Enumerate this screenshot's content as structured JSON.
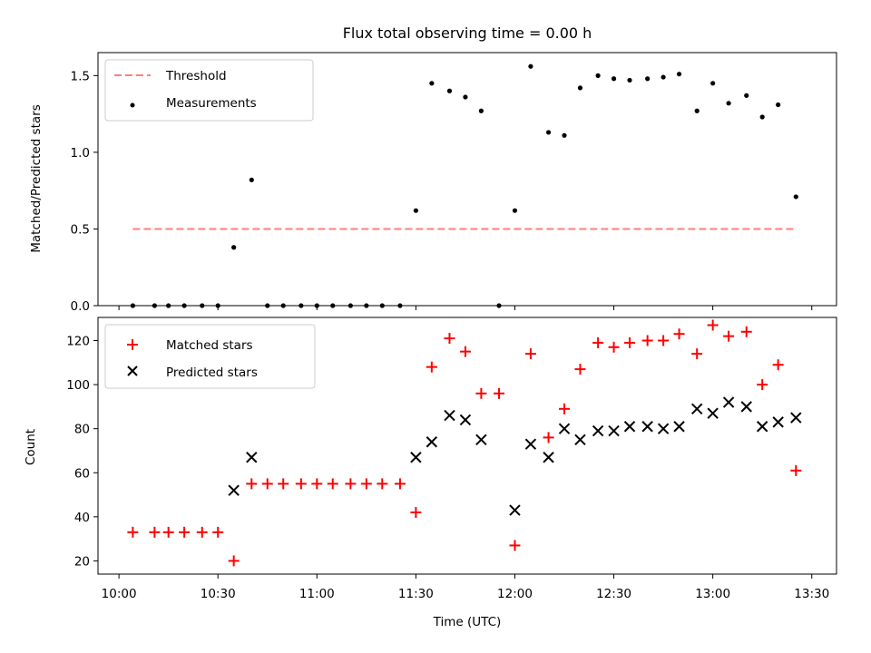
{
  "chart_data": {
    "title": "Flux total observing time = 0.00 h",
    "x_tick_labels": [
      "10:00",
      "10:30",
      "11:00",
      "11:30",
      "12:00",
      "12:30",
      "13:00",
      "13:30"
    ],
    "x_tick_values": [
      10.0,
      10.5,
      11.0,
      11.5,
      12.0,
      12.5,
      13.0,
      13.5
    ],
    "xlabel": "Time (UTC)",
    "xlim": [
      9.894,
      13.625
    ],
    "panels": [
      {
        "type": "scatter",
        "ylabel": "Matched/Predicted stars",
        "ylim": [
          0,
          1.65
        ],
        "y_ticks": [
          0.0,
          0.5,
          1.0,
          1.5
        ],
        "y_tick_labels": [
          "0.0",
          "0.5",
          "1.0",
          "1.5"
        ],
        "legend_position": "top-left",
        "threshold": {
          "name": "Threshold",
          "color": "#ff7f7f",
          "value": 0.5,
          "x_range": [
            10.07,
            13.42
          ]
        },
        "series": [
          {
            "name": "Measurements",
            "color": "#000000",
            "marker": "dot",
            "x": [
              10.07,
              10.18,
              10.25,
              10.33,
              10.42,
              10.5,
              10.58,
              10.67,
              10.75,
              10.83,
              10.92,
              11.0,
              11.08,
              11.17,
              11.25,
              11.33,
              11.42,
              11.5,
              11.58,
              11.67,
              11.75,
              11.83,
              11.92,
              12.0,
              12.08,
              12.17,
              12.25,
              12.33,
              12.42,
              12.5,
              12.58,
              12.67,
              12.75,
              12.83,
              12.92,
              13.0,
              13.08,
              13.17,
              13.25,
              13.33,
              13.42
            ],
            "y": [
              0.0,
              0.0,
              0.0,
              0.0,
              0.0,
              0.0,
              0.38,
              0.82,
              0.0,
              0.0,
              0.0,
              0.0,
              0.0,
              0.0,
              0.0,
              0.0,
              0.0,
              0.62,
              1.45,
              1.4,
              1.36,
              1.27,
              0.0,
              0.62,
              1.56,
              1.13,
              1.11,
              1.42,
              1.5,
              1.48,
              1.47,
              1.48,
              1.49,
              1.51,
              1.27,
              1.45,
              1.32,
              1.37,
              1.23,
              1.31,
              0.71
            ]
          }
        ]
      },
      {
        "type": "scatter",
        "ylabel": "Count",
        "ylim": [
          14,
          130.5
        ],
        "y_ticks": [
          20,
          40,
          60,
          80,
          100,
          120
        ],
        "y_tick_labels": [
          "20",
          "40",
          "60",
          "80",
          "100",
          "120"
        ],
        "legend_position": "top-left",
        "series": [
          {
            "name": "Matched stars",
            "color": "#ff0000",
            "marker": "plus",
            "x": [
              10.07,
              10.18,
              10.25,
              10.33,
              10.42,
              10.5,
              10.58,
              10.67,
              10.75,
              10.83,
              10.92,
              11.0,
              11.08,
              11.17,
              11.25,
              11.33,
              11.42,
              11.5,
              11.58,
              11.67,
              11.75,
              11.83,
              11.92,
              12.0,
              12.08,
              12.17,
              12.25,
              12.33,
              12.42,
              12.5,
              12.58,
              12.67,
              12.75,
              12.83,
              12.92,
              13.0,
              13.08,
              13.17,
              13.25,
              13.33,
              13.42
            ],
            "y": [
              33,
              33,
              33,
              33,
              33,
              33,
              20,
              55,
              55,
              55,
              55,
              55,
              55,
              55,
              55,
              55,
              55,
              42,
              108,
              121,
              115,
              96,
              96,
              27,
              114,
              76,
              89,
              107,
              119,
              117,
              119,
              120,
              120,
              123,
              114,
              127,
              122,
              124,
              100,
              109,
              61
            ]
          },
          {
            "name": "Predicted stars",
            "color": "#000000",
            "marker": "x",
            "x": [
              10.58,
              10.67,
              11.5,
              11.58,
              11.67,
              11.75,
              11.83,
              12.0,
              12.08,
              12.17,
              12.25,
              12.33,
              12.42,
              12.5,
              12.58,
              12.67,
              12.75,
              12.83,
              12.92,
              13.0,
              13.08,
              13.17,
              13.25,
              13.33,
              13.42
            ],
            "y": [
              52,
              67,
              67,
              74,
              86,
              84,
              75,
              43,
              73,
              67,
              80,
              75,
              79,
              79,
              81,
              81,
              80,
              81,
              89,
              87,
              92,
              90,
              81,
              83,
              85
            ]
          }
        ]
      }
    ]
  }
}
